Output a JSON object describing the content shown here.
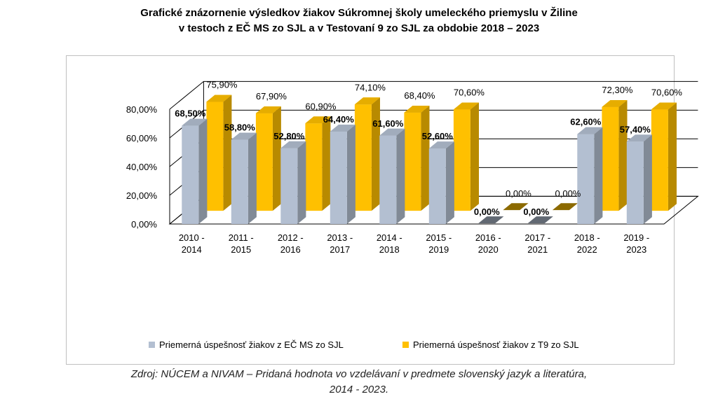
{
  "title_line1": "Grafické znázornenie výsledkov žiakov Súkromnej školy umeleckého priemyslu v Žiline",
  "title_line2": "v testoch z EČ MS zo SJL a v Testovaní 9 zo SJL za obdobie 2018 – 2023",
  "source_line1": "Zdroj: NÚCEM a NIVAM – Pridaná hodnota vo vzdelávaní v predmete slovenský jazyk a literatúra,",
  "source_line2": "2014 - 2023.",
  "colors": {
    "series1": "#b3bfd1",
    "series2": "#ffc000",
    "grid": "#000000"
  },
  "chart_data": {
    "type": "bar",
    "title": "Grafické znázornenie výsledkov žiakov Súkromnej školy umeleckého priemyslu v Žiline v testoch z EČ MS zo SJL a v Testovaní 9 zo SJL za obdobie 2018 – 2023",
    "categories": [
      [
        "2010 -",
        "2014"
      ],
      [
        "2011 -",
        "2015"
      ],
      [
        "2012 -",
        "2016"
      ],
      [
        "2013 -",
        "2017"
      ],
      [
        "2014 -",
        "2018"
      ],
      [
        "2015 -",
        "2019"
      ],
      [
        "2016 -",
        "2020"
      ],
      [
        "2017 -",
        "2021"
      ],
      [
        "2018 -",
        "2022"
      ],
      [
        "2019 -",
        "2023"
      ]
    ],
    "yticks": [
      "0,00%",
      "20,00%",
      "40,00%",
      "60,00%",
      "80,00%"
    ],
    "ylim": [
      0,
      80
    ],
    "legend_position": "bottom",
    "series": [
      {
        "name": "Priemerná úspešnosť žiakov z EČ MS zo SJL",
        "values": [
          68.5,
          58.8,
          52.8,
          64.4,
          61.6,
          52.6,
          0,
          0,
          62.6,
          57.4
        ],
        "labels": [
          "68,50%",
          "58,80%",
          "52,80%",
          "64,40%",
          "61,60%",
          "52,60%",
          "0,00%",
          "0,00%",
          "62,60%",
          "57,40%"
        ]
      },
      {
        "name": "Priemerná úspešnosť žiakov z T9 zo SJL",
        "values": [
          75.9,
          67.9,
          60.9,
          74.1,
          68.4,
          70.6,
          0,
          0,
          72.3,
          70.6
        ],
        "labels": [
          "75,90%",
          "67,90%",
          "60,90%",
          "74,10%",
          "68,40%",
          "70,60%",
          "0,00%",
          "0,00%",
          "72,30%",
          "70,60%"
        ]
      }
    ]
  }
}
